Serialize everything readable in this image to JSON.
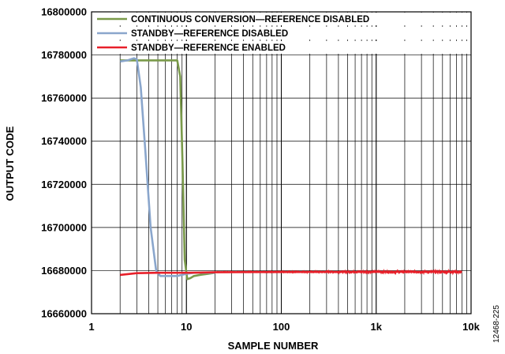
{
  "figure_id": "12468-225",
  "chart_data": {
    "type": "line",
    "title": "",
    "xlabel": "SAMPLE NUMBER",
    "ylabel": "OUTPUT CODE",
    "x_scale": "log",
    "xlim": [
      1,
      10000
    ],
    "ylim": [
      16660000,
      16800000
    ],
    "x_ticks": [
      1,
      10,
      100,
      1000,
      10000
    ],
    "x_tick_labels": [
      "1",
      "10",
      "100",
      "1k",
      "10k"
    ],
    "y_ticks": [
      16660000,
      16680000,
      16700000,
      16720000,
      16740000,
      16760000,
      16780000,
      16800000
    ],
    "y_tick_labels": [
      "16660000",
      "16680000",
      "16700000",
      "16720000",
      "16740000",
      "16760000",
      "16780000",
      "16800000"
    ],
    "grid": true,
    "legend_position": "top-left",
    "series": [
      {
        "name": "CONTINUOUS CONVERSION—REFERENCE DISABLED",
        "color": "#7a9a4a",
        "points": [
          [
            2,
            16777500
          ],
          [
            3,
            16777500
          ],
          [
            5,
            16777500
          ],
          [
            7,
            16777500
          ],
          [
            8,
            16777500
          ],
          [
            8.6,
            16770000
          ],
          [
            9.1,
            16730000
          ],
          [
            9.6,
            16685000
          ],
          [
            10.2,
            16676000
          ],
          [
            11,
            16676500
          ],
          [
            12,
            16677500
          ],
          [
            14,
            16678000
          ],
          [
            17,
            16678500
          ],
          [
            20,
            16679000
          ]
        ]
      },
      {
        "name": "STANDBY—REFERENCE DISABLED",
        "color": "#8aa6cc",
        "points": [
          [
            2,
            16777000
          ],
          [
            2.4,
            16777500
          ],
          [
            2.8,
            16778500
          ],
          [
            3,
            16778000
          ],
          [
            3.3,
            16765000
          ],
          [
            3.7,
            16735000
          ],
          [
            4.2,
            16700000
          ],
          [
            4.8,
            16680000
          ],
          [
            5.3,
            16677500
          ],
          [
            6,
            16677500
          ],
          [
            7,
            16677500
          ],
          [
            8,
            16677500
          ],
          [
            9,
            16678000
          ],
          [
            10,
            16678500
          ],
          [
            12,
            16679000
          ],
          [
            15,
            16679000
          ],
          [
            20,
            16679000
          ]
        ]
      },
      {
        "name": "STANDBY—REFERENCE ENABLED",
        "color": "#e8202a",
        "points": [
          [
            2,
            16678000
          ],
          [
            3,
            16678800
          ],
          [
            5,
            16679000
          ],
          [
            10,
            16679000
          ],
          [
            20,
            16679200
          ],
          [
            50,
            16679300
          ],
          [
            100,
            16679300
          ],
          [
            1000,
            16679400
          ],
          [
            8000,
            16679400
          ]
        ]
      }
    ]
  }
}
